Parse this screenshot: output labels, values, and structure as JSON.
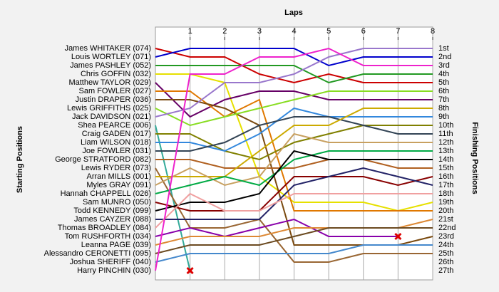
{
  "chart_data": {
    "type": "lap",
    "x_label": "Laps",
    "y_label": "Starting Positions",
    "y2_label": "Finishing Positions",
    "x": [
      0,
      1,
      2,
      3,
      4,
      5,
      6,
      7,
      8
    ],
    "xlim": [
      0,
      8
    ],
    "xticks": [
      1,
      2,
      3,
      4,
      5,
      6,
      7,
      8
    ],
    "ylim": [
      1,
      27
    ],
    "grid": true,
    "finishing_labels": [
      "1st",
      "2nd",
      "3rd",
      "4th",
      "5th",
      "6th",
      "7th",
      "8th",
      "9th",
      "10th",
      "11th",
      "12th",
      "13th",
      "14th",
      "15th",
      "16th",
      "17th",
      "18th",
      "19th",
      "20th",
      "21st",
      "22nd",
      "23rd",
      "24th",
      "25th",
      "26th",
      "27th"
    ],
    "series": [
      {
        "name": "James WHITAKER (074)",
        "color": "#cc0000",
        "values": [
          1,
          2,
          2,
          4,
          5,
          4,
          5,
          5,
          5
        ]
      },
      {
        "name": "Louis WORTLEY (071)",
        "color": "#0000cc",
        "values": [
          2,
          1,
          1,
          1,
          1,
          3,
          2,
          2,
          2
        ]
      },
      {
        "name": "James PASHLEY (052)",
        "color": "#229922",
        "values": [
          3,
          3,
          3,
          3,
          3,
          5,
          4,
          4,
          4
        ]
      },
      {
        "name": "Chris GOFFIN (032)",
        "color": "#e6e000",
        "values": [
          4,
          4,
          5,
          16,
          19,
          19,
          19,
          20,
          19
        ]
      },
      {
        "name": "Matthew TAYLOR (029)",
        "color": "#660066",
        "values": [
          5,
          9,
          7,
          6,
          6,
          7,
          7,
          7,
          7
        ]
      },
      {
        "name": "Sam FOWLER (027)",
        "color": "#e07800",
        "values": [
          6,
          6,
          9,
          7,
          20,
          20,
          20,
          20,
          20
        ]
      },
      {
        "name": "Justin DRAPER (036)",
        "color": "#7a4a10",
        "values": [
          7,
          7,
          8,
          10,
          24,
          24,
          24,
          24,
          23
        ]
      },
      {
        "name": "Lewis GRIFFITHS (025)",
        "color": "#88dd22",
        "values": [
          8,
          10,
          9,
          8,
          7,
          6,
          6,
          6,
          6
        ]
      },
      {
        "name": "Jack DAVIDSON (021)",
        "color": "#9977cc",
        "values": [
          9,
          8,
          5,
          5,
          4,
          2,
          1,
          1,
          1
        ]
      },
      {
        "name": "Shea PEARCE (006)",
        "color": "#33aa99",
        "values": [
          10,
          27,
          null,
          null,
          null,
          null,
          null,
          null,
          null
        ]
      },
      {
        "name": "Craig GADEN (017)",
        "color": "#808000",
        "values": [
          11,
          11,
          13,
          14,
          12,
          11,
          10,
          10,
          10
        ]
      },
      {
        "name": "Liam WILSON (018)",
        "color": "#3388dd",
        "values": [
          12,
          12,
          13,
          11,
          8,
          9,
          9,
          9,
          9
        ]
      },
      {
        "name": "Joe FOWLER (031)",
        "color": "#334455",
        "values": [
          13,
          13,
          12,
          10,
          9,
          9,
          10,
          11,
          11
        ]
      },
      {
        "name": "George STRATFORD (082)",
        "color": "#b06020",
        "values": [
          14,
          14,
          15,
          15,
          15,
          14,
          14,
          15,
          15
        ]
      },
      {
        "name": "Lewis RYDER (073)",
        "color": "#996633",
        "values": [
          15,
          22,
          22,
          21,
          26,
          26,
          25,
          25,
          25
        ]
      },
      {
        "name": "Arran MILLS (001)",
        "color": "#ccaa00",
        "values": [
          16,
          16,
          16,
          13,
          10,
          10,
          8,
          8,
          8
        ]
      },
      {
        "name": "Myles GRAY (091)",
        "color": "#c8a060",
        "values": [
          17,
          15,
          17,
          16,
          11,
          12,
          12,
          12,
          12
        ]
      },
      {
        "name": "Hannah CHAPPELL (026)",
        "color": "#00aa44",
        "values": [
          18,
          17,
          16,
          17,
          14,
          13,
          13,
          13,
          13
        ]
      },
      {
        "name": "Sam MUNRO (050)",
        "color": "#880000",
        "values": [
          19,
          20,
          20,
          20,
          16,
          16,
          16,
          17,
          16
        ]
      },
      {
        "name": "Todd KENNEDY (099)",
        "color": "#000000",
        "values": [
          20,
          19,
          19,
          18,
          13,
          14,
          14,
          14,
          14
        ]
      },
      {
        "name": "James CAYZER (088)",
        "color": "#222266",
        "values": [
          21,
          21,
          21,
          21,
          17,
          16,
          15,
          16,
          17
        ]
      },
      {
        "name": "Thomas BROADLEY (084)",
        "color": "#f0a0a0",
        "values": [
          22,
          18,
          20,
          20,
          18,
          18,
          18,
          18,
          18
        ]
      },
      {
        "name": "Tom RUSHFORTH (034)",
        "color": "#8800aa",
        "values": [
          23,
          22,
          23,
          22,
          21,
          23,
          23,
          23,
          null
        ]
      },
      {
        "name": "Leanna PAGE (039)",
        "color": "#dd8833",
        "values": [
          24,
          23,
          23,
          23,
          22,
          22,
          22,
          22,
          21
        ]
      },
      {
        "name": "Alessandro CERONETTI (095)",
        "color": "#6b4a20",
        "values": [
          25,
          24,
          24,
          24,
          23,
          22,
          22,
          22,
          22
        ]
      },
      {
        "name": "Joshua SHERIFF (040)",
        "color": "#4488cc",
        "values": [
          26,
          25,
          25,
          25,
          25,
          25,
          24,
          24,
          24
        ]
      },
      {
        "name": "Harry PINCHIN (030)",
        "color": "#ee22cc",
        "values": [
          27,
          4,
          4,
          2,
          2,
          1,
          3,
          3,
          3
        ]
      }
    ]
  }
}
